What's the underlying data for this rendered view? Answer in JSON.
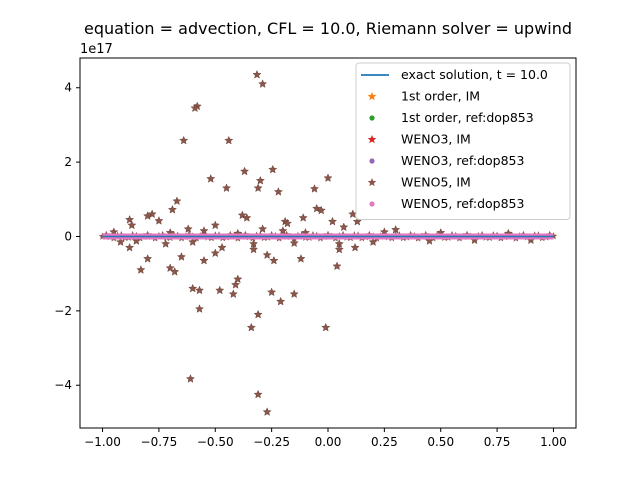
{
  "chart_data": {
    "type": "scatter",
    "title": "equation = advection, CFL = 10.0, Riemann solver = upwind",
    "xlabel": "",
    "ylabel": "",
    "y_offset_label": "1e17",
    "xlim": [
      -1.1,
      1.1
    ],
    "ylim": [
      -5.15,
      4.8
    ],
    "x_ticks": [
      -1.0,
      -0.75,
      -0.5,
      -0.25,
      0.0,
      0.25,
      0.5,
      0.75,
      1.0
    ],
    "x_tick_labels": [
      "−1.00",
      "−0.75",
      "−0.50",
      "−0.25",
      "0.00",
      "0.25",
      "0.50",
      "0.75",
      "1.00"
    ],
    "y_ticks": [
      -4,
      -2,
      0,
      2,
      4
    ],
    "y_tick_labels": [
      "−4",
      "−2",
      "0",
      "2",
      "4"
    ],
    "grid": false,
    "legend_position": "top-right",
    "series": [
      {
        "name": "exact solution, t = 10.0",
        "marker": "line",
        "color": "#1f77b4"
      },
      {
        "name": "1st order, IM",
        "marker": "star",
        "color": "#ff7f0e"
      },
      {
        "name": "1st order, ref:dop853",
        "marker": "dot",
        "color": "#2ca02c"
      },
      {
        "name": "WENO3, IM",
        "marker": "star",
        "color": "#d62728"
      },
      {
        "name": "WENO3, ref:dop853",
        "marker": "dot",
        "color": "#9467bd"
      },
      {
        "name": "WENO5, IM",
        "marker": "star",
        "color": "#8c564b"
      },
      {
        "name": "WENO5, ref:dop853",
        "marker": "dot",
        "color": "#e377c2"
      }
    ],
    "weno5_im_points": [
      [
        -0.315,
        4.35
      ],
      [
        -0.29,
        4.1
      ],
      [
        -0.58,
        3.5
      ],
      [
        -0.59,
        3.45
      ],
      [
        -0.44,
        2.58
      ],
      [
        -0.64,
        2.58
      ],
      [
        -0.37,
        1.75
      ],
      [
        -0.245,
        1.8
      ],
      [
        -0.52,
        1.55
      ],
      [
        -0.3,
        1.5
      ],
      [
        -0.31,
        1.3
      ],
      [
        -0.45,
        1.3
      ],
      [
        -0.0,
        1.57
      ],
      [
        -0.67,
        0.95
      ],
      [
        -0.69,
        0.72
      ],
      [
        -0.22,
        1.2
      ],
      [
        -0.06,
        1.28
      ],
      [
        -0.78,
        0.6
      ],
      [
        -0.8,
        0.55
      ],
      [
        -0.75,
        0.42
      ],
      [
        -0.88,
        0.45
      ],
      [
        -0.87,
        0.3
      ],
      [
        -0.5,
        0.3
      ],
      [
        -0.38,
        0.57
      ],
      [
        -0.36,
        0.5
      ],
      [
        -0.19,
        0.4
      ],
      [
        -0.18,
        0.35
      ],
      [
        -0.11,
        0.5
      ],
      [
        -0.05,
        0.75
      ],
      [
        -0.03,
        0.7
      ],
      [
        0.02,
        0.4
      ],
      [
        0.11,
        0.6
      ],
      [
        0.13,
        0.4
      ],
      [
        0.07,
        0.25
      ],
      [
        -0.55,
        0.15
      ],
      [
        -0.62,
        0.2
      ],
      [
        -0.29,
        0.2
      ],
      [
        -0.2,
        0.15
      ],
      [
        0.25,
        0.12
      ],
      [
        0.3,
        0.18
      ],
      [
        -0.95,
        0.12
      ],
      [
        -0.7,
        0.1
      ],
      [
        -0.4,
        0.08
      ],
      [
        -0.1,
        0.1
      ],
      [
        0.5,
        0.1
      ],
      [
        0.8,
        0.08
      ],
      [
        -0.92,
        -0.15
      ],
      [
        -0.85,
        -0.12
      ],
      [
        -0.72,
        -0.2
      ],
      [
        -0.6,
        -0.15
      ],
      [
        -0.33,
        -0.2
      ],
      [
        -0.15,
        -0.18
      ],
      [
        0.05,
        -0.2
      ],
      [
        0.2,
        -0.15
      ],
      [
        0.45,
        -0.12
      ],
      [
        0.65,
        -0.1
      ],
      [
        0.9,
        -0.1
      ],
      [
        -0.88,
        -0.3
      ],
      [
        -0.65,
        -0.55
      ],
      [
        -0.8,
        -0.6
      ],
      [
        -0.83,
        -0.9
      ],
      [
        -0.7,
        -0.85
      ],
      [
        -0.68,
        -0.95
      ],
      [
        -0.55,
        -0.65
      ],
      [
        -0.5,
        -0.45
      ],
      [
        -0.47,
        -0.3
      ],
      [
        -0.33,
        -0.35
      ],
      [
        -0.27,
        -0.5
      ],
      [
        -0.24,
        -0.65
      ],
      [
        -0.12,
        -0.6
      ],
      [
        0.05,
        -0.35
      ],
      [
        0.12,
        -0.3
      ],
      [
        0.04,
        -0.8
      ],
      [
        -0.6,
        -1.4
      ],
      [
        -0.57,
        -1.45
      ],
      [
        -0.48,
        -1.45
      ],
      [
        -0.4,
        -1.15
      ],
      [
        -0.41,
        -1.3
      ],
      [
        -0.42,
        -1.55
      ],
      [
        -0.25,
        -1.5
      ],
      [
        -0.15,
        -1.55
      ],
      [
        -0.21,
        -1.75
      ],
      [
        -0.57,
        -1.95
      ],
      [
        -0.31,
        -2.1
      ],
      [
        -0.34,
        -2.45
      ],
      [
        -0.01,
        -2.45
      ],
      [
        -0.61,
        -3.83
      ],
      [
        -0.31,
        -4.25
      ],
      [
        -0.27,
        -4.72
      ]
    ]
  }
}
